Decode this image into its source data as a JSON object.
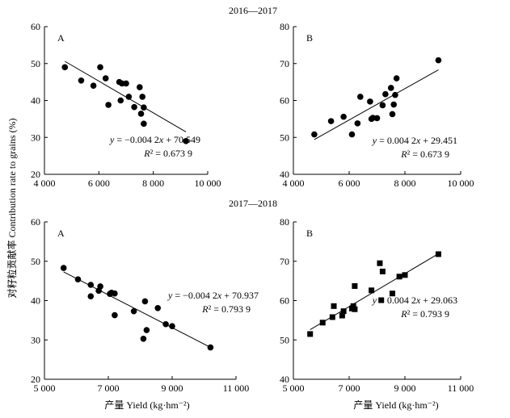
{
  "figure": {
    "ylabel": "对籽粒贡献率 Contribution rate to grains (%)",
    "xlabel": "产量 Yield (kg·hm⁻²)",
    "row_titles": [
      "2016—2017",
      "2017—2018"
    ]
  },
  "chart_data": [
    {
      "type": "scatter",
      "panel_label": "A",
      "period": "2016—2017",
      "marker": "circle",
      "xlim": [
        4000,
        10000
      ],
      "ylim": [
        20,
        60
      ],
      "xticks": [
        4000,
        6000,
        8000,
        10000
      ],
      "xtick_labels": [
        "4 000",
        "6 000",
        "8 000",
        "10 000"
      ],
      "yticks": [
        20,
        30,
        40,
        50,
        60
      ],
      "ytick_labels": [
        "20",
        "30",
        "40",
        "50",
        "60"
      ],
      "equation": "y = −0.004 2x + 70.549",
      "r2": "R² = 0.673 9",
      "fit_line": [
        [
          4750,
          50.6
        ],
        [
          9200,
          31.5
        ]
      ],
      "points": [
        [
          4750,
          49.0
        ],
        [
          5350,
          45.4
        ],
        [
          5800,
          44.0
        ],
        [
          6050,
          49.0
        ],
        [
          6250,
          46.0
        ],
        [
          6350,
          38.8
        ],
        [
          6750,
          45.0
        ],
        [
          6800,
          40.0
        ],
        [
          6850,
          44.6
        ],
        [
          7000,
          44.6
        ],
        [
          7100,
          41.0
        ],
        [
          7300,
          38.2
        ],
        [
          7500,
          43.6
        ],
        [
          7550,
          36.4
        ],
        [
          7600,
          41.0
        ],
        [
          7650,
          38.1
        ],
        [
          7650,
          33.7
        ],
        [
          9200,
          29.0
        ]
      ]
    },
    {
      "type": "scatter",
      "panel_label": "B",
      "period": "2016—2017",
      "marker": "circle",
      "xlim": [
        4000,
        10000
      ],
      "ylim": [
        40,
        80
      ],
      "xticks": [
        4000,
        6000,
        8000,
        10000
      ],
      "xtick_labels": [
        "4 000",
        "6 000",
        "8 000",
        "10 000"
      ],
      "yticks": [
        40,
        50,
        60,
        70,
        80
      ],
      "ytick_labels": [
        "40",
        "50",
        "60",
        "70",
        "80"
      ],
      "equation": "y = 0.004 2x + 29.451",
      "r2": "R² = 0.673 9",
      "fit_line": [
        [
          4750,
          49.4
        ],
        [
          9200,
          68.3
        ]
      ],
      "points": [
        [
          4750,
          50.8
        ],
        [
          5350,
          54.4
        ],
        [
          5800,
          55.6
        ],
        [
          6100,
          50.8
        ],
        [
          6300,
          53.8
        ],
        [
          6400,
          61.0
        ],
        [
          6750,
          59.7
        ],
        [
          6800,
          55.0
        ],
        [
          6850,
          55.3
        ],
        [
          7000,
          55.2
        ],
        [
          7200,
          58.7
        ],
        [
          7300,
          61.7
        ],
        [
          7500,
          63.4
        ],
        [
          7550,
          56.3
        ],
        [
          7600,
          58.9
        ],
        [
          7650,
          61.5
        ],
        [
          7700,
          66.0
        ],
        [
          9200,
          70.9
        ]
      ]
    },
    {
      "type": "scatter",
      "panel_label": "A",
      "period": "2017—2018",
      "marker": "circle",
      "xlim": [
        5000,
        11000
      ],
      "ylim": [
        20,
        60
      ],
      "xticks": [
        5000,
        7000,
        9000,
        11000
      ],
      "xtick_labels": [
        "5 000",
        "7 000",
        "9 000",
        "11 000"
      ],
      "yticks": [
        20,
        30,
        40,
        50,
        60
      ],
      "ytick_labels": [
        "20",
        "30",
        "40",
        "50",
        "60"
      ],
      "equation": "y = −0.004 2x + 70.937",
      "r2": "R² = 0.793 9",
      "fit_line": [
        [
          5600,
          47.3
        ],
        [
          10200,
          28.1
        ]
      ],
      "points": [
        [
          5600,
          48.3
        ],
        [
          6050,
          45.4
        ],
        [
          6450,
          44.0
        ],
        [
          6450,
          41.1
        ],
        [
          6700,
          42.5
        ],
        [
          6750,
          43.6
        ],
        [
          7050,
          41.7
        ],
        [
          7100,
          42.0
        ],
        [
          7200,
          41.8
        ],
        [
          7200,
          36.3
        ],
        [
          7800,
          37.3
        ],
        [
          8100,
          30.3
        ],
        [
          8150,
          39.8
        ],
        [
          8200,
          32.5
        ],
        [
          8550,
          38.1
        ],
        [
          8800,
          34.0
        ],
        [
          9000,
          33.5
        ],
        [
          10200,
          28.1
        ]
      ]
    },
    {
      "type": "scatter",
      "panel_label": "B",
      "period": "2017—2018",
      "marker": "square",
      "xlim": [
        5000,
        11000
      ],
      "ylim": [
        40,
        80
      ],
      "xticks": [
        5000,
        7000,
        9000,
        11000
      ],
      "xtick_labels": [
        "5 000",
        "7 000",
        "9 000",
        "11 000"
      ],
      "yticks": [
        40,
        50,
        60,
        70,
        80
      ],
      "ytick_labels": [
        "40",
        "50",
        "60",
        "70",
        "80"
      ],
      "equation": "y = 0.004 2x + 29.063",
      "r2": "R² = 0.793 9",
      "fit_line": [
        [
          5600,
          52.6
        ],
        [
          10200,
          71.9
        ]
      ],
      "points": [
        [
          5600,
          51.5
        ],
        [
          6050,
          54.4
        ],
        [
          6400,
          55.8
        ],
        [
          6450,
          58.6
        ],
        [
          6750,
          56.2
        ],
        [
          6800,
          57.3
        ],
        [
          7100,
          58.0
        ],
        [
          7150,
          58.6
        ],
        [
          7200,
          63.7
        ],
        [
          7200,
          57.8
        ],
        [
          7800,
          62.6
        ],
        [
          8100,
          69.5
        ],
        [
          8150,
          60.1
        ],
        [
          8200,
          67.4
        ],
        [
          8550,
          61.8
        ],
        [
          8800,
          66.1
        ],
        [
          9000,
          66.5
        ],
        [
          10200,
          71.8
        ]
      ]
    }
  ]
}
